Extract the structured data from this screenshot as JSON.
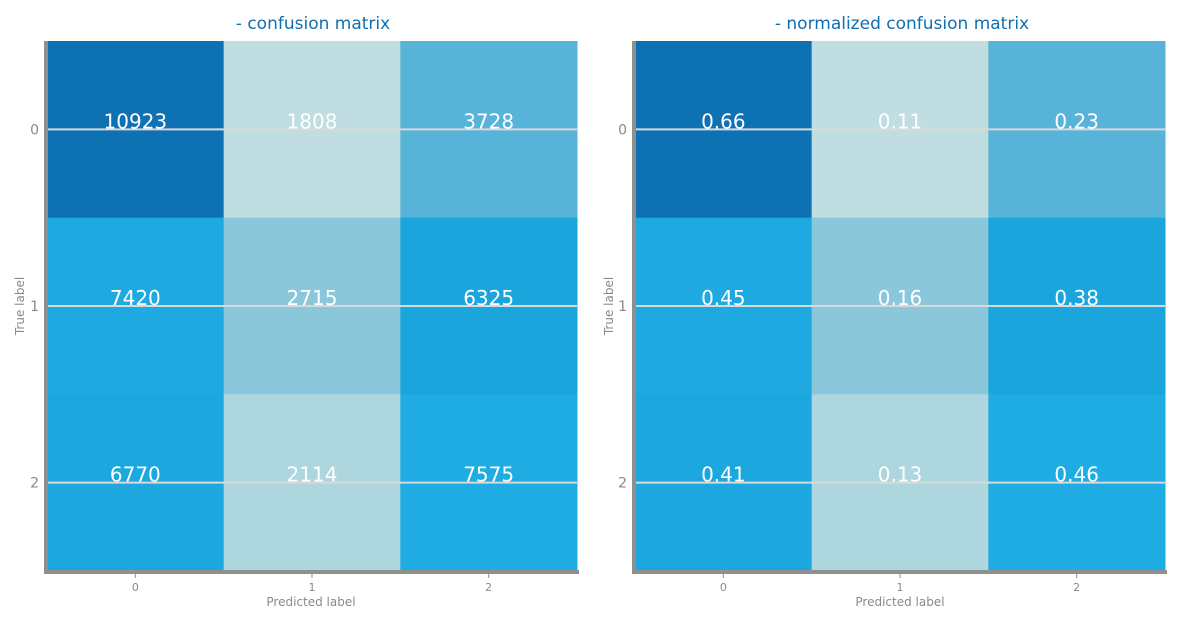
{
  "chart_data": [
    {
      "type": "heatmap",
      "title": "- confusion matrix",
      "xlabel": "Predicted label",
      "ylabel": "True label",
      "x_categories": [
        "0",
        "1",
        "2"
      ],
      "y_categories": [
        "0",
        "1",
        "2"
      ],
      "values": [
        [
          10923,
          1808,
          3728
        ],
        [
          7420,
          2715,
          6325
        ],
        [
          6770,
          2114,
          7575
        ]
      ],
      "cell_labels": [
        [
          "10923",
          "1808",
          "3728"
        ],
        [
          "7420",
          "2715",
          "6325"
        ],
        [
          "6770",
          "2114",
          "7575"
        ]
      ],
      "cell_colors": [
        [
          "#0e71b4",
          "#c0dee2",
          "#58b3d9"
        ],
        [
          "#1eaae1",
          "#8ac7db",
          "#1ba5dd"
        ],
        [
          "#1ca8df",
          "#add6de",
          "#1eace3"
        ]
      ],
      "grid": true
    },
    {
      "type": "heatmap",
      "title": "- normalized confusion matrix",
      "xlabel": "Predicted label",
      "ylabel": "True label",
      "x_categories": [
        "0",
        "1",
        "2"
      ],
      "y_categories": [
        "0",
        "1",
        "2"
      ],
      "values": [
        [
          0.66,
          0.11,
          0.23
        ],
        [
          0.45,
          0.16,
          0.38
        ],
        [
          0.41,
          0.13,
          0.46
        ]
      ],
      "cell_labels": [
        [
          "0.66",
          "0.11",
          "0.23"
        ],
        [
          "0.45",
          "0.16",
          "0.38"
        ],
        [
          "0.41",
          "0.13",
          "0.46"
        ]
      ],
      "cell_colors": [
        [
          "#0e71b4",
          "#c0dee2",
          "#58b3d9"
        ],
        [
          "#1eaae1",
          "#8ac7db",
          "#1ba5dd"
        ],
        [
          "#1ca8df",
          "#add6de",
          "#1eace3"
        ]
      ],
      "grid": true
    }
  ],
  "theme": {
    "axis_color": "#8f8f8f",
    "grid_color": "#d9d9d9",
    "title_color": "#0f6fb0",
    "text_color": "#ffffff"
  }
}
